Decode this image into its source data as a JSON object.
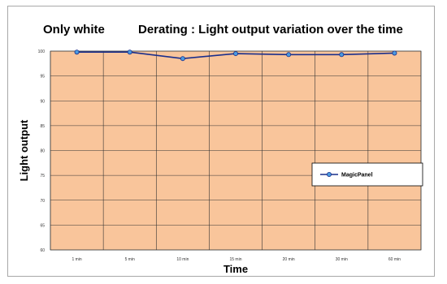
{
  "chart_data": {
    "type": "line",
    "title_left": "Only white",
    "title": "Derating : Light output variation over the time",
    "xlabel": "Time",
    "ylabel": "Light output",
    "categories": [
      "1 min",
      "5 min",
      "10 min",
      "15 min",
      "20 min",
      "30 min",
      "60 min"
    ],
    "yticks": [
      "60",
      "65",
      "70",
      "75",
      "80",
      "85",
      "90",
      "95",
      "100"
    ],
    "ylim": [
      60,
      100
    ],
    "grid": true,
    "legend_position": "right",
    "series": [
      {
        "name": "MagicPanel",
        "values": [
          99.8,
          99.8,
          98.5,
          99.5,
          99.3,
          99.3,
          99.6
        ]
      }
    ],
    "colors": {
      "plot_background": "#f9c59b",
      "gridline": "#333333",
      "series_line": "#1a2e8c",
      "series_marker": "#4a9be0"
    }
  }
}
